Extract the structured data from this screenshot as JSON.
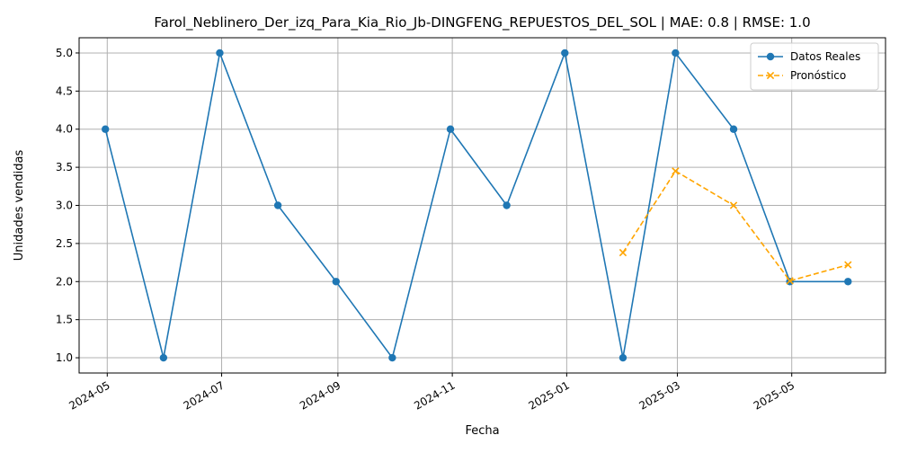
{
  "chart_data": {
    "type": "line",
    "title": "Farol_Neblinero_Der_izq_Para_Kia_Rio_Jb-DINGFENG_REPUESTOS_DEL_SOL | MAE: 0.8 | RMSE: 1.0",
    "xlabel": "Fecha",
    "ylabel": "Unidades vendidas",
    "ylim": [
      0.8,
      5.2
    ],
    "xlim": [
      "2024-04-16",
      "2025-06-20"
    ],
    "grid": true,
    "legend_position": "top-right",
    "x_ticks": [
      "2024-05",
      "2024-07",
      "2024-09",
      "2024-11",
      "2025-01",
      "2025-03",
      "2025-05"
    ],
    "y_ticks": [
      "1.0",
      "1.5",
      "2.0",
      "2.5",
      "3.0",
      "3.5",
      "4.0",
      "4.5",
      "5.0"
    ],
    "series": [
      {
        "name": "Datos Reales",
        "color": "#1f77b4",
        "style": "solid",
        "marker": "circle",
        "points": [
          {
            "x": "2024-04-30",
            "y": 4
          },
          {
            "x": "2024-05-31",
            "y": 1
          },
          {
            "x": "2024-06-30",
            "y": 5
          },
          {
            "x": "2024-07-31",
            "y": 3
          },
          {
            "x": "2024-08-31",
            "y": 2
          },
          {
            "x": "2024-09-30",
            "y": 1
          },
          {
            "x": "2024-10-31",
            "y": 4
          },
          {
            "x": "2024-11-30",
            "y": 3
          },
          {
            "x": "2024-12-31",
            "y": 5
          },
          {
            "x": "2025-01-31",
            "y": 1
          },
          {
            "x": "2025-02-28",
            "y": 5
          },
          {
            "x": "2025-03-31",
            "y": 4
          },
          {
            "x": "2025-04-30",
            "y": 2
          },
          {
            "x": "2025-05-31",
            "y": 2
          }
        ]
      },
      {
        "name": "Pronóstico",
        "color": "#ffa500",
        "style": "dashed",
        "marker": "x",
        "points": [
          {
            "x": "2025-01-31",
            "y": 2.38
          },
          {
            "x": "2025-02-28",
            "y": 3.45
          },
          {
            "x": "2025-03-31",
            "y": 3.0
          },
          {
            "x": "2025-04-30",
            "y": 2.01
          },
          {
            "x": "2025-05-31",
            "y": 2.22
          }
        ]
      }
    ]
  }
}
